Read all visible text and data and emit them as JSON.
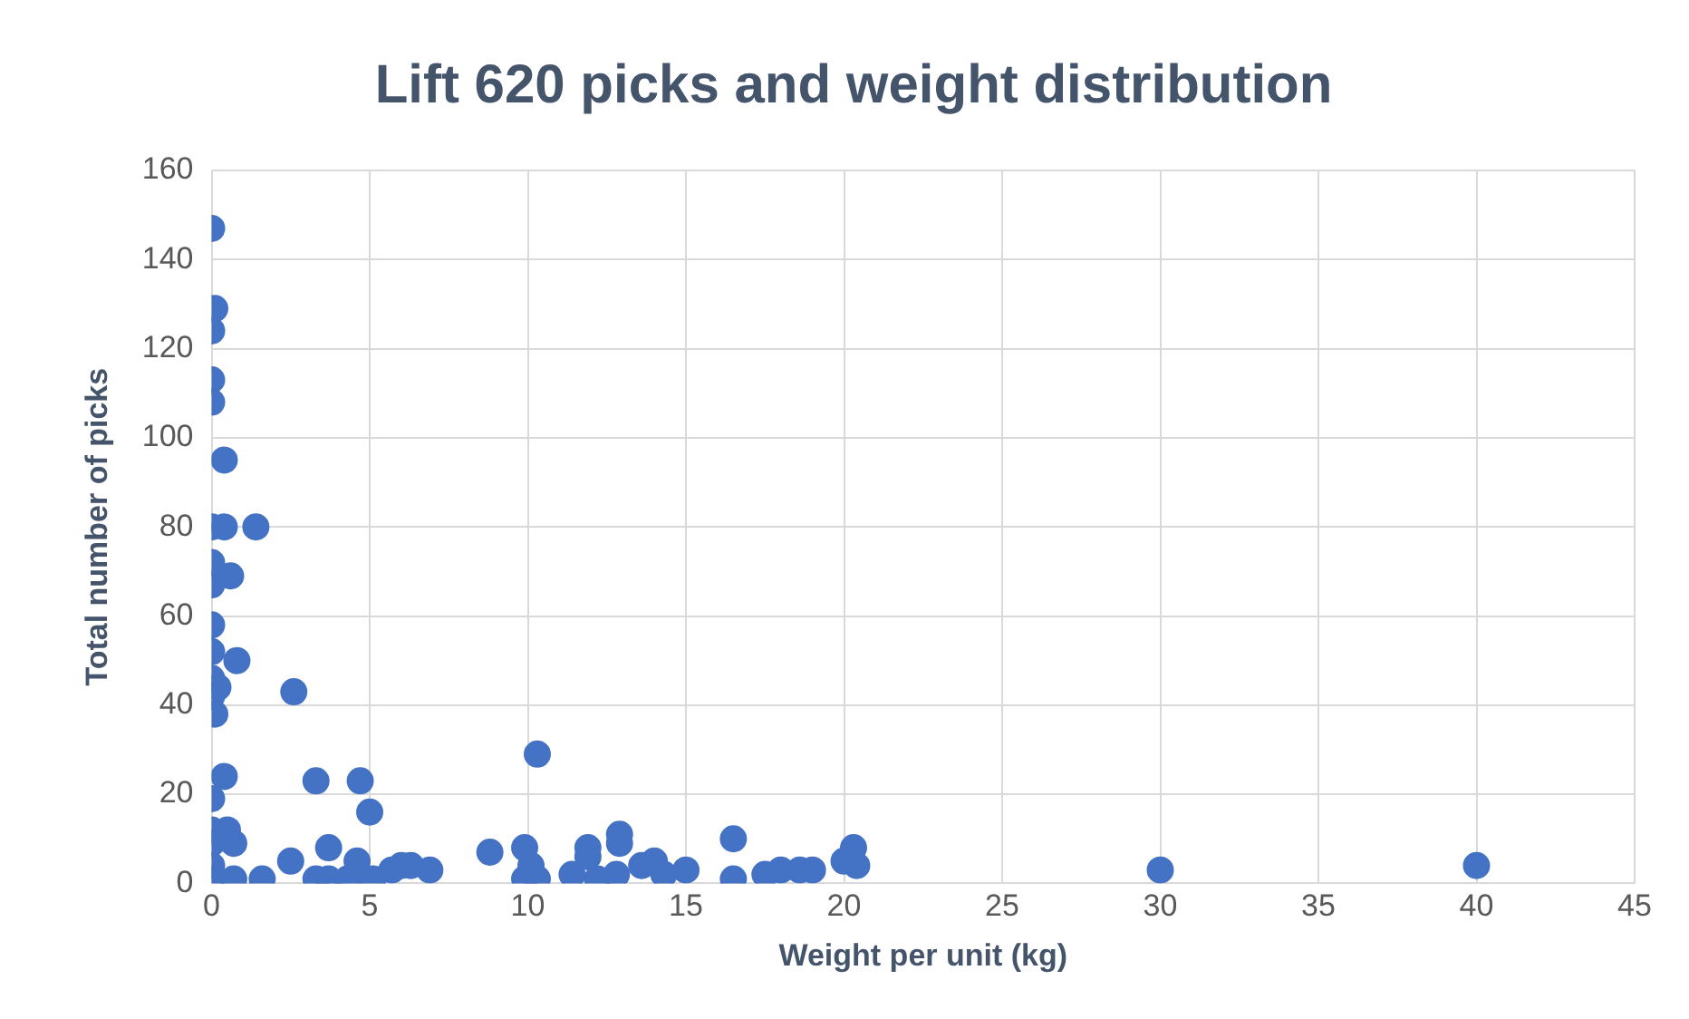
{
  "chart_data": {
    "type": "scatter",
    "title": "Lift 620 picks and weight distribution",
    "xlabel": "Weight per unit (kg)",
    "ylabel": "Total number of picks",
    "x": [
      0,
      0.1,
      0,
      0,
      0,
      0.4,
      0,
      0.4,
      1.4,
      0,
      0.6,
      0,
      0,
      0,
      0.8,
      0,
      0.2,
      0,
      0.1,
      2.6,
      0.4,
      0,
      0,
      0.5,
      0,
      0.7,
      0,
      0,
      0.7,
      1.6,
      3.3,
      4.7,
      5,
      2.5,
      3.7,
      4.6,
      3.3,
      3.7,
      4.3,
      5.1,
      5.7,
      6,
      6.3,
      6.9,
      8.8,
      9.9,
      9.9,
      10.3,
      10.3,
      10.1,
      11.4,
      11.9,
      11.9,
      12.2,
      12.8,
      12.9,
      12.9,
      13.6,
      14,
      14.3,
      15,
      16.5,
      16.5,
      17.5,
      18,
      18.6,
      19,
      20,
      20.3,
      20.4,
      30,
      40
    ],
    "values": [
      147,
      129,
      124,
      113,
      108,
      95,
      80,
      80,
      80,
      72,
      69,
      67,
      58,
      52,
      50,
      46,
      44,
      42,
      38,
      43,
      24,
      19,
      12,
      12,
      9,
      9,
      4,
      1,
      1,
      1,
      23,
      23,
      16,
      5,
      8,
      5,
      1,
      1,
      1,
      1,
      3,
      4,
      4,
      3,
      7,
      8,
      1,
      1,
      29,
      4,
      2,
      6,
      8,
      1,
      2,
      9,
      11,
      4,
      5,
      2,
      3,
      10,
      1,
      2,
      3,
      3,
      3,
      5,
      8,
      4,
      3,
      4
    ],
    "color": "#4472c4",
    "marker": "circle",
    "xlim": [
      0,
      45
    ],
    "xticks": [
      0,
      5,
      10,
      15,
      20,
      25,
      30,
      35,
      40,
      45
    ],
    "ylim": [
      0,
      160
    ],
    "yticks": [
      0,
      20,
      40,
      60,
      80,
      100,
      120,
      140,
      160
    ],
    "grid": true
  }
}
